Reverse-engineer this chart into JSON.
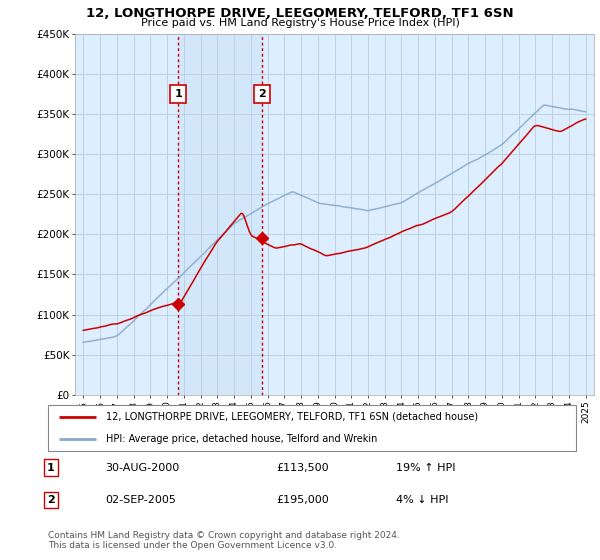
{
  "title": "12, LONGTHORPE DRIVE, LEEGOMERY, TELFORD, TF1 6SN",
  "subtitle": "Price paid vs. HM Land Registry's House Price Index (HPI)",
  "ylabel_ticks": [
    "£0",
    "£50K",
    "£100K",
    "£150K",
    "£200K",
    "£250K",
    "£300K",
    "£350K",
    "£400K",
    "£450K"
  ],
  "ylim": [
    0,
    450000
  ],
  "xlim": [
    1994.5,
    2025.5
  ],
  "sale1_x": 2000.66,
  "sale1_y": 113500,
  "sale2_x": 2005.67,
  "sale2_y": 195000,
  "sale1_label": "30-AUG-2000",
  "sale1_price": "£113,500",
  "sale1_hpi": "19% ↑ HPI",
  "sale2_label": "02-SEP-2005",
  "sale2_price": "£195,000",
  "sale2_hpi": "4% ↓ HPI",
  "legend_line1": "12, LONGTHORPE DRIVE, LEEGOMERY, TELFORD, TF1 6SN (detached house)",
  "legend_line2": "HPI: Average price, detached house, Telford and Wrekin",
  "footnote": "Contains HM Land Registry data © Crown copyright and database right 2024.\nThis data is licensed under the Open Government Licence v3.0.",
  "red_color": "#cc0000",
  "blue_color": "#88aacc",
  "plot_bg": "#ddeeff",
  "grid_color": "#bbccdd"
}
